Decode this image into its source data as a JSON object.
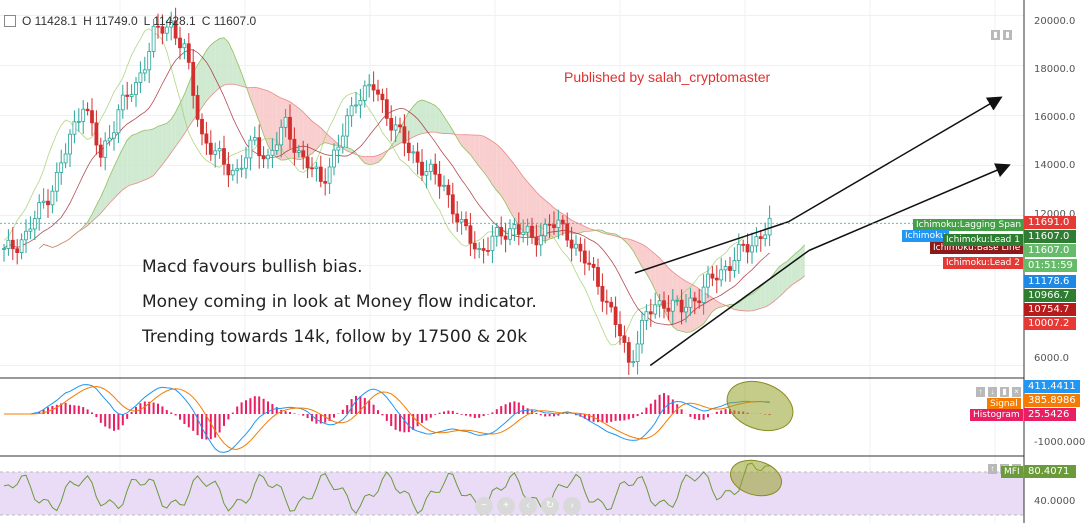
{
  "header": {
    "open": "O 11428.1",
    "high": "H 11749.0",
    "low": "L 11428.1",
    "close": "C 11607.0"
  },
  "publisher_text": "Published by salah_cryptomaster",
  "notes": [
    "Macd favours bullish bias.",
    "Money coming in look at Money flow indicator.",
    "Trending towards 14k, follow by 17500 & 20k"
  ],
  "price_axis": {
    "ticks": [
      "20000.0",
      "18000.0",
      "16000.0",
      "14000.0",
      "12000.0",
      "6000.0"
    ]
  },
  "ichimoku_labels": {
    "lagging_span": "Ichimoku:Lagging Span",
    "base": "Ichimoku",
    "lead1": "Ichimoku:Lead 1",
    "base_line": "Ichimoku:Base Line",
    "lead2": "Ichimoku:Lead 2"
  },
  "price_tags": [
    {
      "value": "11691.0",
      "color": "#e53935"
    },
    {
      "value": "11607.0",
      "color": "#2e7d32"
    },
    {
      "value": "11607.0",
      "color": "#66bb6a"
    },
    {
      "value": "01:51:59",
      "color": "#66bb6a"
    },
    {
      "value": "11178.6",
      "color": "#1e88e5"
    },
    {
      "value": "10966.7",
      "color": "#2e7d32"
    },
    {
      "value": "10754.7",
      "color": "#b71c1c"
    },
    {
      "value": "10007.2",
      "color": "#e53935"
    }
  ],
  "macd_pane": {
    "ticks": [
      "-1000.0000"
    ],
    "macd_value": "411.4411",
    "signal_label": "Signal",
    "signal_value": "385.8986",
    "histogram_label": "Histogram",
    "histogram_value": "25.5426"
  },
  "mfi_pane": {
    "label": "MFI",
    "value": "80.4071",
    "ticks": [
      "40.0000"
    ]
  },
  "colors": {
    "up": "#26a69a",
    "down": "#d32f2f",
    "cloud_bull": "#c8e6c9",
    "cloud_bear": "#f8c6c6",
    "macd": "#2196f3",
    "signal": "#f57c00",
    "mfi": "#6a9a3a",
    "mfi_band": "#eadcf7"
  },
  "chart_data": [
    {
      "type": "candlestick",
      "title": "",
      "ylim": [
        5500,
        20500
      ],
      "y_ticks": [
        6000,
        12000,
        14000,
        16000,
        18000,
        20000
      ],
      "last": {
        "open": 11428.1,
        "high": 11749.0,
        "low": 11428.1,
        "close": 11607.0
      },
      "price_path": [
        {
          "i": 0,
          "v": 10500
        },
        {
          "i": 5,
          "v": 11200
        },
        {
          "i": 12,
          "v": 13500
        },
        {
          "i": 18,
          "v": 16600
        },
        {
          "i": 22,
          "v": 14300
        },
        {
          "i": 26,
          "v": 16200
        },
        {
          "i": 30,
          "v": 17200
        },
        {
          "i": 34,
          "v": 19200
        },
        {
          "i": 38,
          "v": 19700
        },
        {
          "i": 41,
          "v": 18600
        },
        {
          "i": 45,
          "v": 15200
        },
        {
          "i": 50,
          "v": 14000
        },
        {
          "i": 53,
          "v": 13800
        },
        {
          "i": 57,
          "v": 14900
        },
        {
          "i": 60,
          "v": 14300
        },
        {
          "i": 64,
          "v": 15600
        },
        {
          "i": 68,
          "v": 14200
        },
        {
          "i": 72,
          "v": 13400
        },
        {
          "i": 76,
          "v": 14700
        },
        {
          "i": 80,
          "v": 16800
        },
        {
          "i": 84,
          "v": 17100
        },
        {
          "i": 88,
          "v": 15800
        },
        {
          "i": 92,
          "v": 14600
        },
        {
          "i": 96,
          "v": 13800
        },
        {
          "i": 100,
          "v": 13200
        },
        {
          "i": 104,
          "v": 11500
        },
        {
          "i": 108,
          "v": 10600
        },
        {
          "i": 112,
          "v": 11100
        },
        {
          "i": 116,
          "v": 11600
        },
        {
          "i": 120,
          "v": 11000
        },
        {
          "i": 124,
          "v": 11700
        },
        {
          "i": 128,
          "v": 11300
        },
        {
          "i": 132,
          "v": 10200
        },
        {
          "i": 136,
          "v": 9000
        },
        {
          "i": 140,
          "v": 7200
        },
        {
          "i": 142,
          "v": 6100
        },
        {
          "i": 146,
          "v": 8000
        },
        {
          "i": 150,
          "v": 8600
        },
        {
          "i": 154,
          "v": 8200
        },
        {
          "i": 158,
          "v": 8900
        },
        {
          "i": 162,
          "v": 9600
        },
        {
          "i": 166,
          "v": 10300
        },
        {
          "i": 170,
          "v": 10900
        },
        {
          "i": 174,
          "v": 11607
        }
      ],
      "trend_channel": {
        "upper": [
          [
            0.62,
            9700
          ],
          [
            0.77,
            11750
          ]
        ],
        "lower": [
          [
            0.635,
            6000
          ],
          [
            0.79,
            10600
          ]
        ],
        "targets": [
          "14000",
          "17500",
          "20000"
        ]
      }
    },
    {
      "type": "line",
      "title": "",
      "ylim": [
        -1500,
        1200
      ],
      "series": [
        {
          "name": "",
          "color": "#2196f3"
        },
        {
          "name": "Signal",
          "color": "#f57c00"
        },
        {
          "name": "Histogram",
          "color": "#e91e63"
        }
      ],
      "last": {
        "macd": 411.4411,
        "signal": 385.8986,
        "histogram": 25.5426
      }
    },
    {
      "type": "line",
      "title": "",
      "ylim": [
        20,
        100
      ],
      "series": [
        {
          "name": "MFI",
          "color": "#6a9a3a"
        }
      ],
      "last": {
        "mfi": 80.4071
      },
      "bands": [
        20,
        80
      ]
    }
  ]
}
